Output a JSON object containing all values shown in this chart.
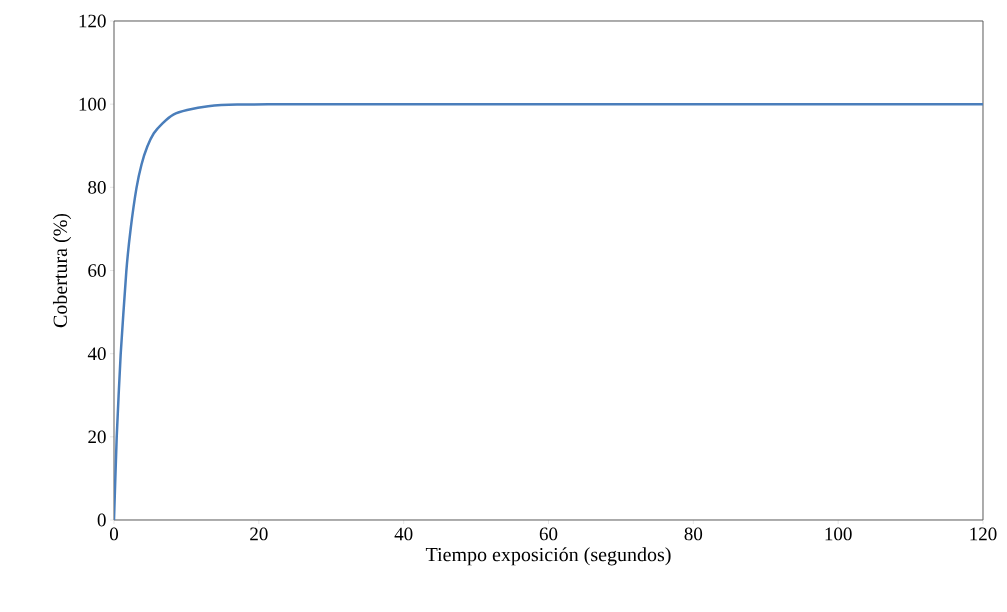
{
  "chart_data": {
    "type": "line",
    "xlabel": "Tiempo exposición (segundos)",
    "ylabel": "Cobertura (%)",
    "x": [
      0,
      0.37,
      0.92,
      1.7,
      2.3,
      3.1,
      3.8,
      4.6,
      5.5,
      6.7,
      8.2,
      10.1,
      13,
      17,
      25,
      40,
      60,
      80,
      100,
      120
    ],
    "series": [
      {
        "color": "#4a7ebb",
        "values": [
          0,
          19.8,
          39.8,
          59.8,
          70,
          79.8,
          85.5,
          89.8,
          93,
          95.4,
          97.5,
          98.6,
          99.5,
          99.9,
          100,
          100,
          100,
          100,
          100,
          100
        ]
      }
    ],
    "xlim": [
      0,
      120
    ],
    "ylim": [
      0,
      120
    ],
    "xticks": [
      0,
      20,
      40,
      60,
      80,
      100,
      120
    ],
    "yticks": [
      0,
      20,
      40,
      60,
      80,
      100,
      120
    ],
    "grid": false,
    "marker": "none",
    "line_style": "solid"
  }
}
